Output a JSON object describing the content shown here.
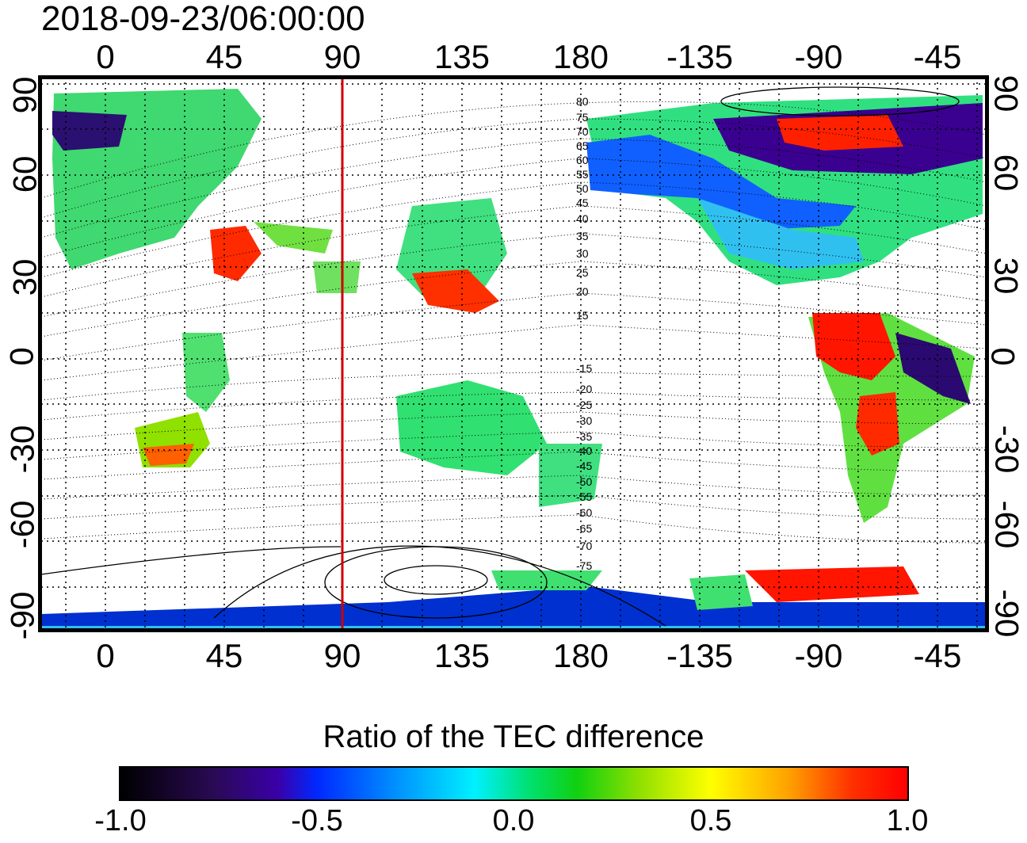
{
  "title": "2018-09-23/06:00:00",
  "longitude_ticks": [
    "0",
    "45",
    "90",
    "135",
    "180",
    "-135",
    "-90",
    "-45"
  ],
  "latitude_ticks": [
    "90",
    "60",
    "30",
    "0",
    "-30",
    "-60",
    "-90"
  ],
  "magnetic_latitude_labels_north": [
    "80",
    "75",
    "70",
    "65",
    "60",
    "55",
    "50",
    "45",
    "40",
    "35",
    "30",
    "25",
    "20",
    "15"
  ],
  "magnetic_latitude_labels_south": [
    "-15",
    "-20",
    "-25",
    "-30",
    "-35",
    "-40",
    "-45",
    "-50",
    "-55",
    "-60",
    "-65",
    "-70",
    "-75"
  ],
  "highlight_longitude": 90,
  "colorbar": {
    "title": "Ratio of the TEC difference",
    "ticks": [
      "-1.0",
      "-0.5",
      "0.0",
      "0.5",
      "1.0"
    ],
    "min": -1.0,
    "max": 1.0
  },
  "colors": {
    "highlight_line": "#cc0000",
    "frame": "#000000"
  }
}
